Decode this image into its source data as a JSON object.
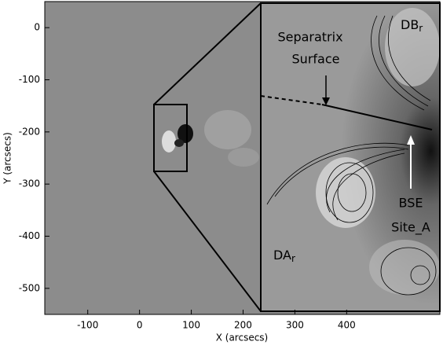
{
  "chart_data": {
    "type": "image",
    "xlabel": "X (arcsecs)",
    "ylabel": "Y (arcsecs)",
    "xlim": [
      -183,
      580
    ],
    "ylim": [
      -550,
      50
    ],
    "xticks": [
      -100,
      0,
      100,
      200,
      300,
      400
    ],
    "yticks": [
      0,
      -100,
      -200,
      -300,
      -400,
      -500
    ],
    "annotations": {
      "separatrix": [
        "Separatrix",
        "Surface"
      ],
      "db": {
        "text": "DB",
        "sub": "r"
      },
      "bse": [
        "BSE",
        "Site_A"
      ],
      "da": {
        "text": "DA",
        "sub": "r"
      }
    }
  }
}
